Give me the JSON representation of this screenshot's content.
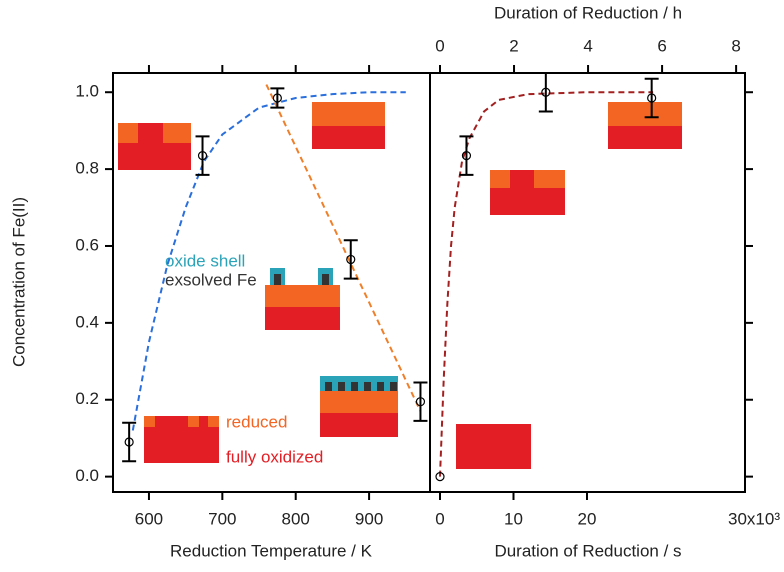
{
  "chart_data": [
    {
      "type": "scatter",
      "ylabel": "Concentration of Fe(II)",
      "xlabel": "Reduction Temperature / K",
      "xlim": [
        551,
        983
      ],
      "xticks": [
        600,
        700,
        800,
        900
      ],
      "ylim": [
        -0.04,
        1.05
      ],
      "yticks": [
        {
          "value": 0,
          "label": "0.0"
        },
        0.2,
        0.4,
        0.6,
        0.8,
        {
          "value": 1,
          "label": "1.0"
        }
      ],
      "x": [
        573,
        673,
        775,
        875,
        970
      ],
      "values": [
        0.09,
        0.835,
        0.985,
        0.565,
        0.195
      ],
      "errors": [
        0.05,
        0.05,
        0.025,
        0.05,
        0.05
      ],
      "color": "#000000",
      "fits": [
        {
          "color": "#2a6fdb",
          "x": [
            578,
            600,
            625,
            650,
            675,
            700,
            750,
            800,
            850,
            900,
            950
          ],
          "values": [
            0.12,
            0.35,
            0.55,
            0.7,
            0.82,
            0.89,
            0.96,
            0.985,
            0.995,
            1.0,
            1.0
          ]
        },
        {
          "color": "#f07f2a",
          "x": [
            760,
            970
          ],
          "values": [
            1.02,
            0.17
          ]
        }
      ],
      "annotations": {
        "oxide_shell": "oxide shell",
        "exsolved_fe": "exsolved Fe",
        "reduced": "reduced",
        "fully_oxidized": "fully oxidized"
      }
    },
    {
      "type": "scatter",
      "xlabel": "Duration of Reduction / s",
      "x2label": "Duration of Reduction / h",
      "xlim": [
        -1360,
        41500
      ],
      "xticks": [
        0,
        {
          "value": 10000,
          "label": "10"
        },
        {
          "value": 20000,
          "label": "20"
        }
      ],
      "x_multiplier": "30x10³",
      "x2lim": [
        -0.27,
        8.24
      ],
      "x2ticks": [
        0,
        2,
        4,
        6,
        8
      ],
      "ylim": [
        -0.04,
        1.05
      ],
      "yticks": [
        0,
        0.2,
        0.4,
        0.6,
        0.8,
        1
      ],
      "x": [
        0,
        3600,
        14400,
        28800
      ],
      "values": [
        0,
        0.835,
        1.0,
        0.985
      ],
      "errors": [
        null,
        0.05,
        0.05,
        0.05
      ],
      "color": "#000000",
      "fits": [
        {
          "color": "#a32020",
          "x": [
            0,
            500,
            1000,
            1500,
            2000,
            3000,
            4000,
            6000,
            8000,
            12000,
            20000,
            29000
          ],
          "values": [
            0,
            0.25,
            0.45,
            0.6,
            0.7,
            0.82,
            0.88,
            0.95,
            0.98,
            0.995,
            1.0,
            1.0
          ]
        }
      ]
    }
  ]
}
